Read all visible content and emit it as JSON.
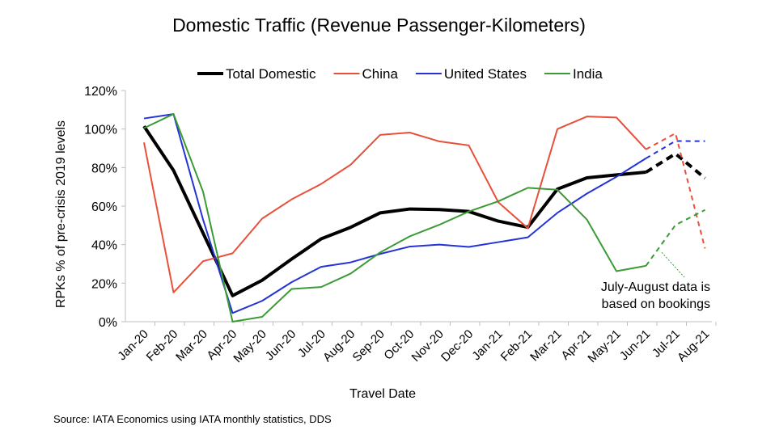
{
  "chart_data": {
    "type": "line",
    "title": "Domestic Traffic (Revenue Passenger-Kilometers)",
    "xlabel": "Travel Date",
    "ylabel": "RPKs % of pre-crisis 2019 levels",
    "ylim": [
      0,
      120
    ],
    "yticks": [
      "0%",
      "20%",
      "40%",
      "60%",
      "80%",
      "100%",
      "120%"
    ],
    "grid": false,
    "legend_position": "top",
    "categories": [
      "Jan-20",
      "Feb-20",
      "Mar-20",
      "Apr-20",
      "May-20",
      "Jun-20",
      "Jul-20",
      "Aug-20",
      "Sep-20",
      "Oct-20",
      "Nov-20",
      "Dec-20",
      "Jan-21",
      "Feb-21",
      "Mar-21",
      "Apr-21",
      "May-21",
      "Jun-21",
      "Jul-21",
      "Aug-21"
    ],
    "series": [
      {
        "name": "Total Domestic",
        "color": "#000000",
        "width": 4,
        "values": [
          101.5,
          78.5,
          46,
          13.5,
          21.5,
          32.5,
          43,
          49,
          56.5,
          58.5,
          58.2,
          57.2,
          52.2,
          49,
          68.8,
          74.7,
          76.2,
          77.6,
          87.2,
          74.5
        ]
      },
      {
        "name": "China",
        "color": "#e8503a",
        "width": 2,
        "values": [
          93,
          15.2,
          31.4,
          35.5,
          53.5,
          63.5,
          71.5,
          81.5,
          97,
          98.2,
          93.6,
          91.5,
          62,
          48.5,
          100,
          106.5,
          106,
          89.5,
          97.8,
          38
        ]
      },
      {
        "name": "United States",
        "color": "#2433d6",
        "width": 2,
        "values": [
          105.5,
          107.8,
          53,
          4.5,
          10.8,
          20.5,
          28.5,
          30.8,
          35.2,
          39,
          40,
          38.8,
          41.3,
          43.8,
          56.5,
          66.5,
          75.2,
          84.8,
          93.8,
          93.7
        ]
      },
      {
        "name": "India",
        "color": "#3a9b35",
        "width": 2,
        "values": [
          100.5,
          107.8,
          67.5,
          0,
          2.5,
          17,
          18,
          25,
          36,
          44.3,
          50.3,
          57.2,
          62.5,
          69.5,
          68.5,
          53,
          26.2,
          29,
          50.2,
          58
        ]
      }
    ],
    "projected_from_index": 17,
    "annotation": {
      "line1": "July-August data is",
      "line2": "based on bookings",
      "arrow_target_category": "Jul-21",
      "arrow_target_value": 36
    },
    "source": "Source: IATA Economics using IATA monthly statistics, DDS"
  }
}
